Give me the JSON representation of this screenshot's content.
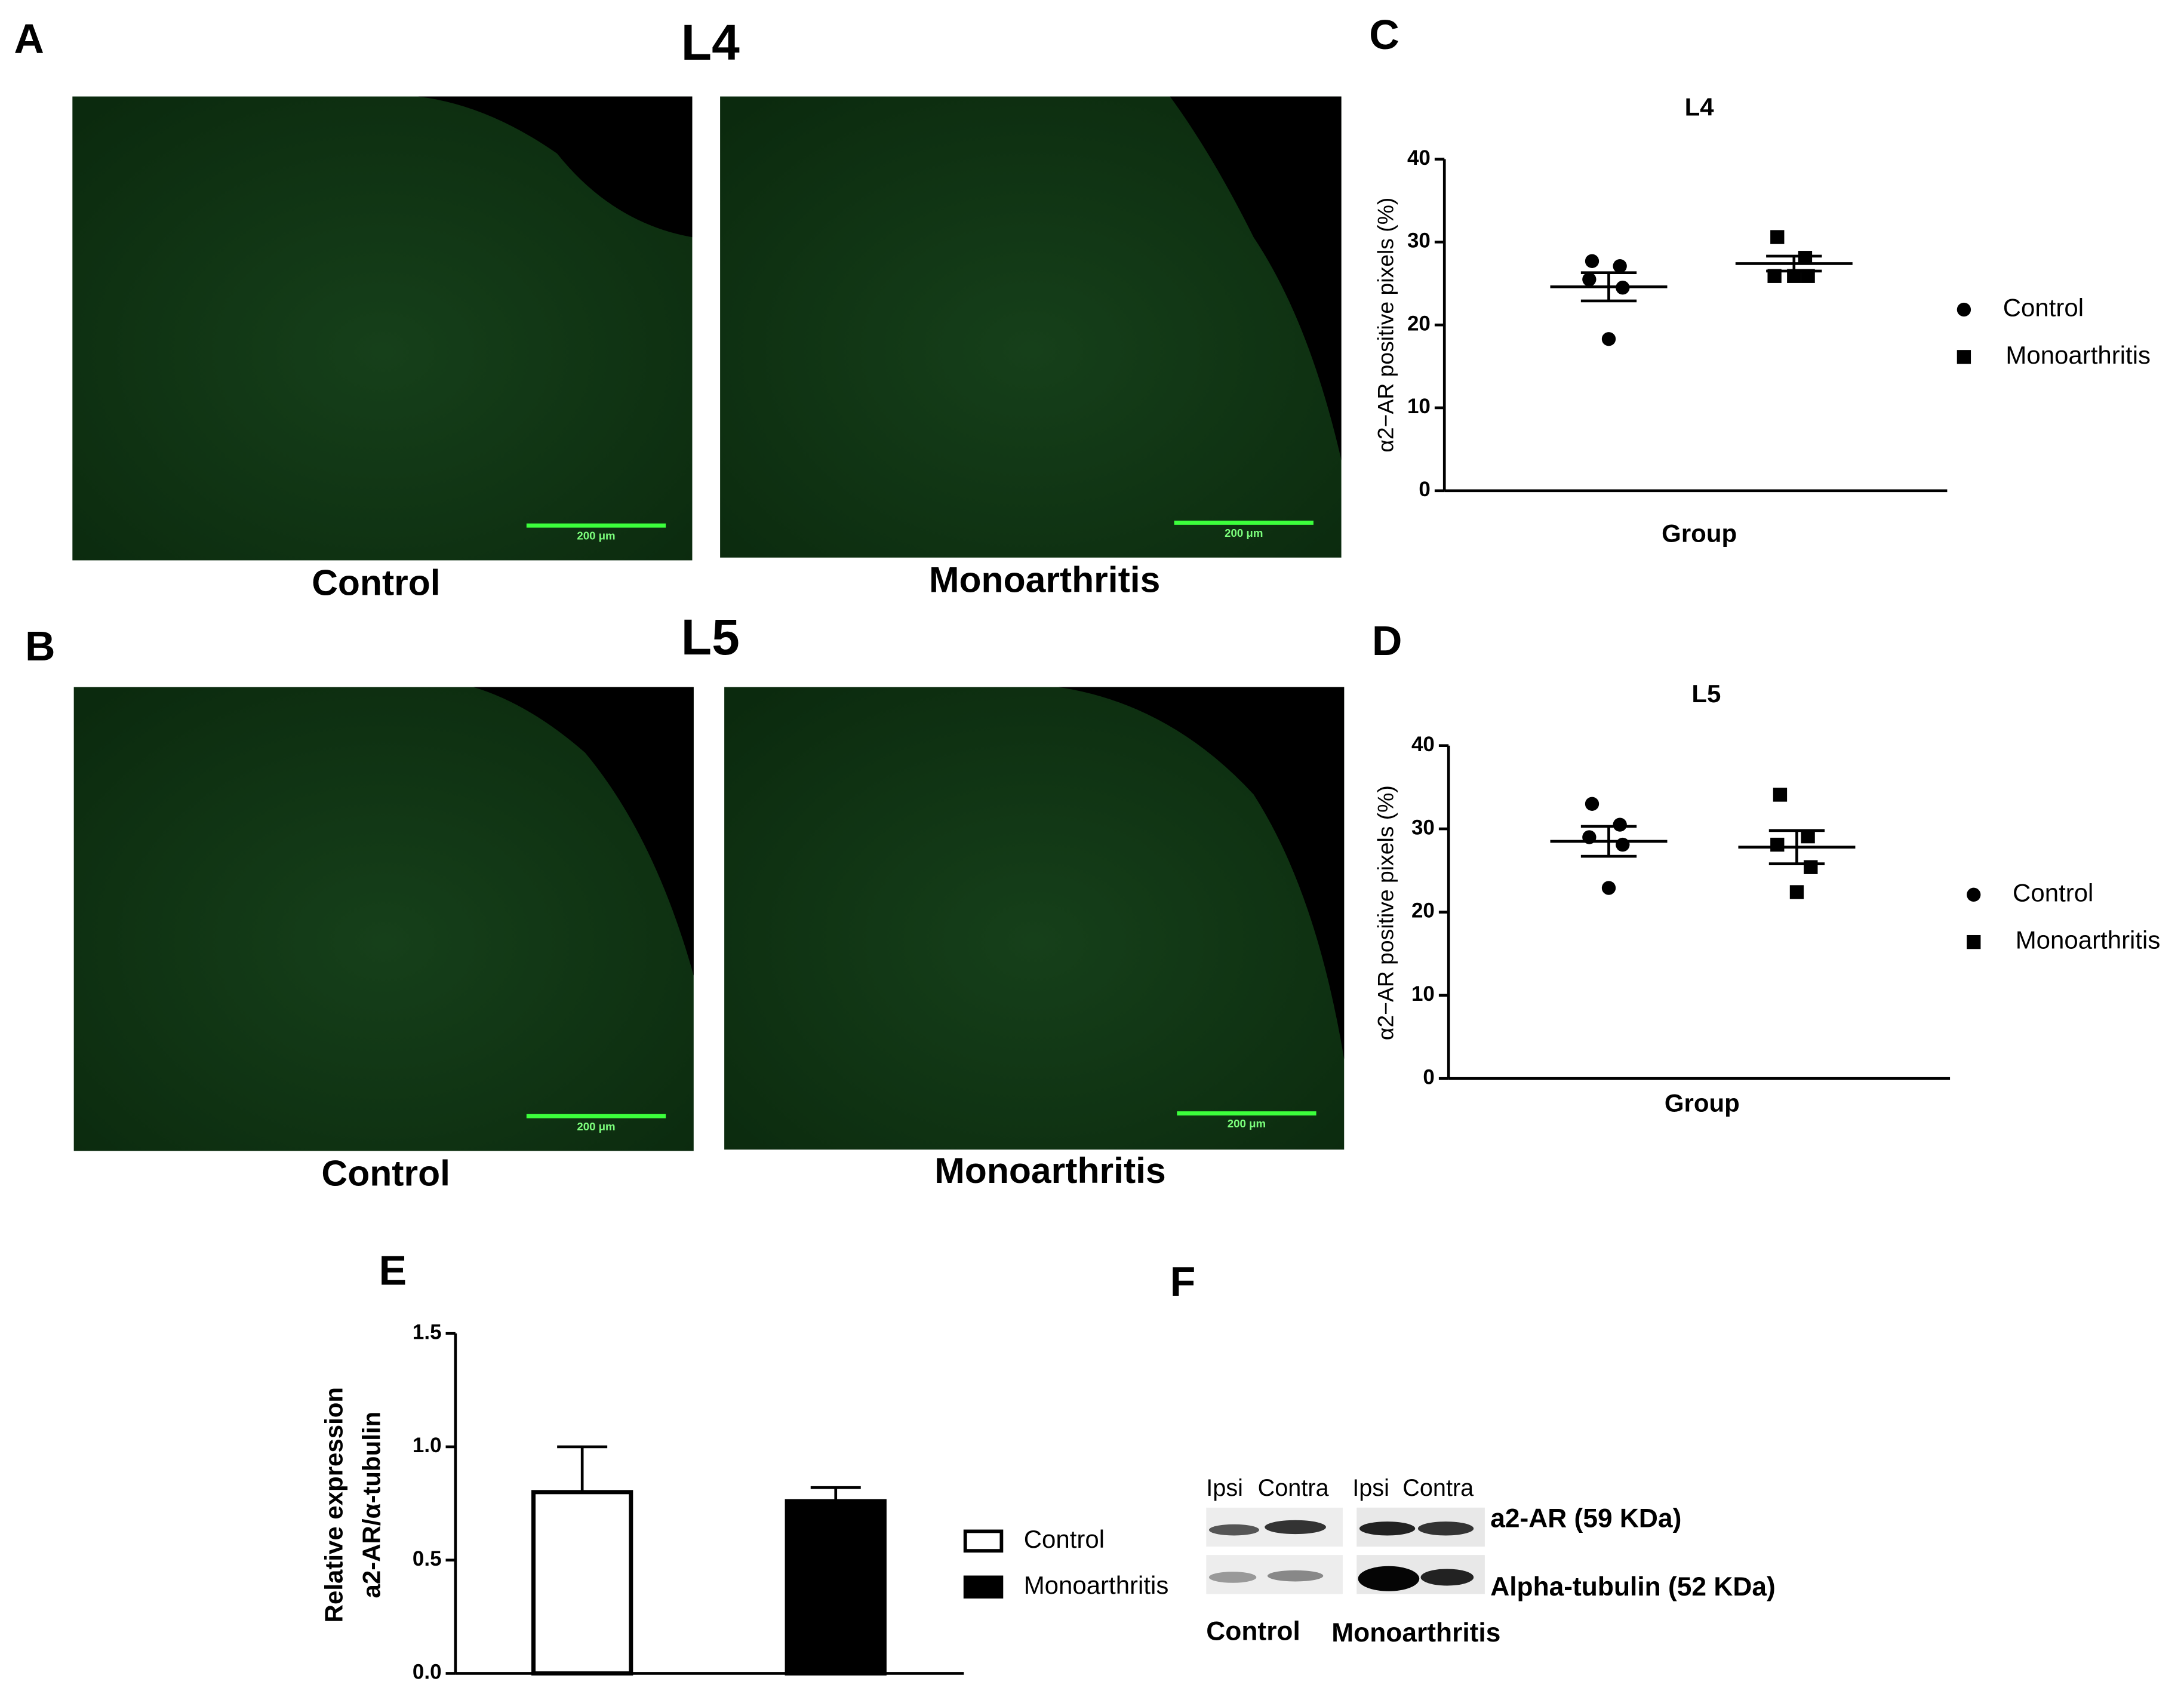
{
  "labels": [
    "A",
    "B",
    "C",
    "D",
    "E",
    "F"
  ],
  "images": {
    "rows": [
      {
        "level": "L4",
        "captions": [
          "Control",
          "Monoarthritis"
        ]
      },
      {
        "level": "L5",
        "captions": [
          "Control",
          "Monoarthritis"
        ]
      }
    ],
    "scale_bar": "200 μm"
  },
  "blot": {
    "lanes": [
      "Ipsi",
      "Contra",
      "Ipsi",
      "Contra"
    ],
    "bands": [
      "a2-AR (59 KDa)",
      "Alpha-tubulin (52 KDa)"
    ],
    "groups": [
      "Control",
      "Monoarthritis"
    ]
  },
  "chart_data": [
    {
      "type": "scatter",
      "title": "L4",
      "y_label": "α2−AR positive pixels (%)",
      "x_label": "Group",
      "ylim": [
        0,
        40
      ],
      "yticks": [
        0,
        10,
        20,
        30,
        40
      ],
      "series": [
        {
          "name": "Control",
          "color": "#000000",
          "marker": "circle",
          "values": [
            27.7,
            27.1,
            25.5,
            24.5,
            18.3
          ],
          "mean": 24.6,
          "error": 1.7
        },
        {
          "name": "Monoarthritis",
          "color": "#000000",
          "marker": "square",
          "values": [
            30.6,
            28.1,
            25.9,
            25.9,
            25.9
          ],
          "mean": 27.4,
          "error": 0.9
        }
      ]
    },
    {
      "type": "scatter",
      "title": "L5",
      "y_label": "α2−AR positive pixels (%)",
      "x_label": "Group",
      "ylim": [
        0,
        40
      ],
      "yticks": [
        0,
        10,
        20,
        30,
        40
      ],
      "series": [
        {
          "name": "Control",
          "color": "#000000",
          "marker": "circle",
          "values": [
            33.0,
            30.5,
            29.0,
            28.1,
            22.9
          ],
          "mean": 28.5,
          "error": 1.8
        },
        {
          "name": "Monoarthritis",
          "color": "#000000",
          "marker": "square",
          "values": [
            34.1,
            29.1,
            28.1,
            25.4,
            22.4
          ],
          "mean": 27.8,
          "error": 2.0
        }
      ]
    },
    {
      "type": "bar",
      "y_label": [
        "Relative expression",
        "a2-AR/α-tubulin"
      ],
      "ylim": [
        0,
        1.5
      ],
      "yticks": [
        {
          "value": 0,
          "label": "0.0"
        },
        0.5,
        {
          "value": 1,
          "label": "1.0"
        },
        1.5
      ],
      "series": [
        {
          "name": "Control",
          "color": "#ffffff",
          "values": [
            0.8
          ],
          "errors": [
            0.2
          ]
        },
        {
          "name": "Monoarthritis",
          "color": "#000000",
          "values": [
            0.76
          ],
          "errors": [
            0.06
          ]
        }
      ]
    }
  ]
}
